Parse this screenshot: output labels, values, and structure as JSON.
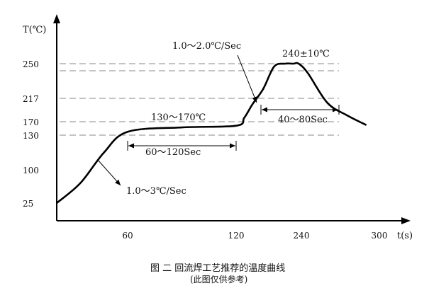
{
  "chart_data": {
    "type": "line",
    "title": "",
    "xlabel": "t(s)",
    "ylabel": "T(℃)",
    "x_ticks": [
      {
        "label": "60",
        "value": 60
      },
      {
        "label": "120",
        "value": 120
      },
      {
        "label": "240",
        "value": 240
      },
      {
        "label": "300",
        "value": 300
      }
    ],
    "y_ticks": [
      {
        "label": "25",
        "value": 25
      },
      {
        "label": "100",
        "value": 100
      },
      {
        "label": "130",
        "value": 130
      },
      {
        "label": "170",
        "value": 170
      },
      {
        "label": "217",
        "value": 217
      },
      {
        "label": "250",
        "value": 250
      }
    ],
    "reference_lines": [
      130,
      170,
      217,
      240,
      250
    ],
    "series": [
      {
        "x": [
          0,
          20,
          40,
          60,
          90,
          120,
          135,
          150,
          170,
          190,
          210,
          225,
          235,
          245,
          260,
          275,
          290
        ],
        "y": [
          25,
          70,
          115,
          140,
          153,
          158,
          178,
          205,
          225,
          246,
          260,
          262,
          255,
          238,
          208,
          183,
          160
        ]
      }
    ],
    "annotations": [
      {
        "text": "1.0～2.0℃/Sec"
      },
      {
        "text": "240±10℃"
      },
      {
        "text": "130～170℃"
      },
      {
        "text": "60～120Sec"
      },
      {
        "text": "40～80Sec"
      },
      {
        "text": "1.0～3℃/Sec"
      }
    ]
  },
  "caption": {
    "line1": "图 二  回流焊工艺推荐的温度曲线",
    "line2": "(此图仅供参考)"
  }
}
